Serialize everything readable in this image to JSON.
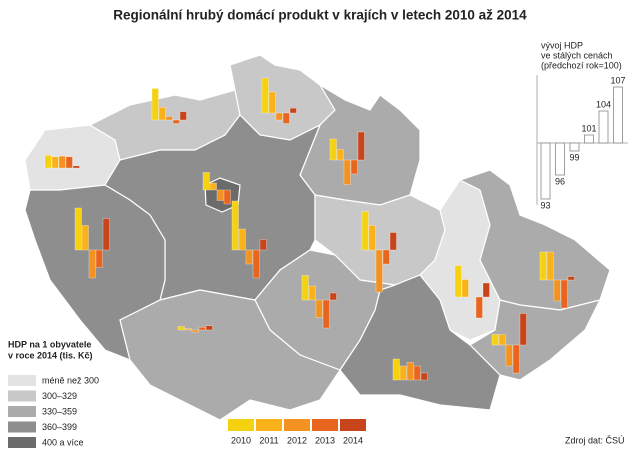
{
  "title": "Regionální hrubý domácí produkt v krajích v letech 2010 až 2014",
  "baseline": 100,
  "years": [
    {
      "label": "2010",
      "color": "#f5d10f"
    },
    {
      "label": "2011",
      "color": "#f9b21a"
    },
    {
      "label": "2012",
      "color": "#f39121"
    },
    {
      "label": "2013",
      "color": "#e8651f"
    },
    {
      "label": "2014",
      "color": "#c8441b"
    }
  ],
  "classes_title": [
    "HDP na 1 obyvatele",
    "v roce 2014 (tis. Kč)"
  ],
  "classes": [
    {
      "label": "méně než 300",
      "color": "#e3e3e3"
    },
    {
      "label": "300–329",
      "color": "#c8c8c8"
    },
    {
      "label": "330–359",
      "color": "#ababab"
    },
    {
      "label": "360–399",
      "color": "#8e8e8e"
    },
    {
      "label": "400 a více",
      "color": "#6b6b6b"
    }
  ],
  "regions": [
    {
      "class": 0,
      "values": [
        101.8,
        101.6,
        101.7,
        101.6,
        100.3
      ]
    },
    {
      "class": 1,
      "values": [
        104.5,
        101.8,
        100.5,
        99.5,
        101.2
      ]
    },
    {
      "class": 1,
      "values": [
        105,
        103,
        99,
        98.5,
        100.7
      ]
    },
    {
      "class": 2,
      "values": [
        103,
        101.5,
        96.5,
        98,
        104
      ]
    },
    {
      "class": 4,
      "values": [
        102.5,
        101,
        98.5,
        98,
        100
      ]
    },
    {
      "class": 3,
      "values": [
        107,
        103,
        98,
        96,
        101.5
      ]
    },
    {
      "class": 3,
      "values": [
        106,
        103.5,
        96,
        97.5,
        104.5
      ]
    },
    {
      "class": 1,
      "values": [
        105.5,
        103.5,
        94,
        98,
        102.5
      ]
    },
    {
      "class": 0,
      "values": [
        104.5,
        102.5,
        100,
        97,
        102
      ]
    },
    {
      "class": 2,
      "values": [
        104,
        104,
        97,
        96,
        100.5
      ]
    },
    {
      "class": 2,
      "values": [
        101.5,
        101.5,
        97,
        96,
        104.5
      ]
    },
    {
      "class": 3,
      "values": [
        103,
        102,
        102.5,
        102,
        101
      ]
    },
    {
      "class": 2,
      "values": [
        103.5,
        102,
        97.5,
        96,
        101
      ]
    },
    {
      "class": 2,
      "values": [
        100.5,
        100.2,
        99.7,
        100.4,
        100.6
      ]
    }
  ],
  "scale_title": [
    "vývoj HDP",
    "ve stálých cenách",
    "(předchozí rok=100)"
  ],
  "scale_values": [
    93,
    96,
    99,
    101,
    104,
    107
  ],
  "source": "Zdroj dat: ČSÚ"
}
